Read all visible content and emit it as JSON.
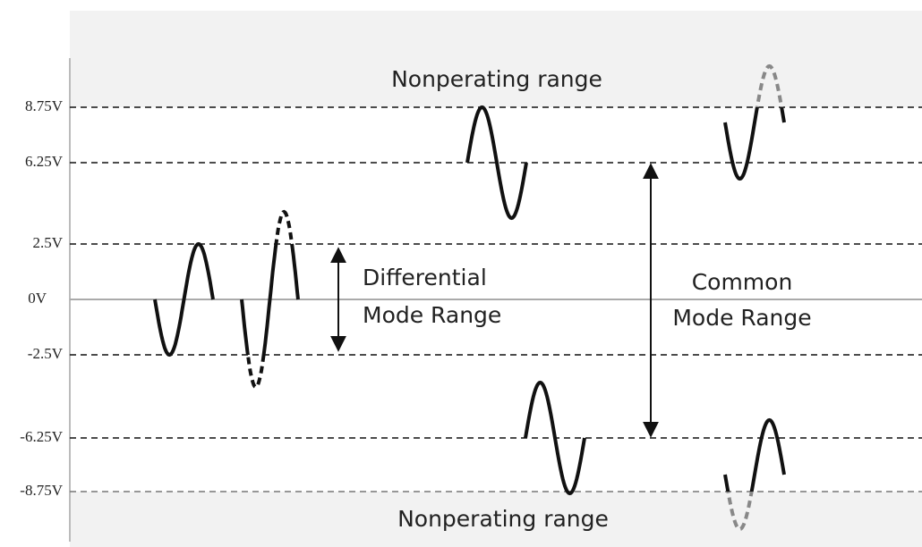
{
  "levels": [
    "8.75V",
    "6.25V",
    "2.5V",
    "0V",
    "-2.5V",
    "-6.25V",
    "-8.75V"
  ],
  "top_region": "Nonperating range",
  "bottom_region": "Nonperating range",
  "differential_label": [
    "Differential",
    "Mode Range"
  ],
  "common_label": [
    "Common",
    "Mode Range"
  ]
}
